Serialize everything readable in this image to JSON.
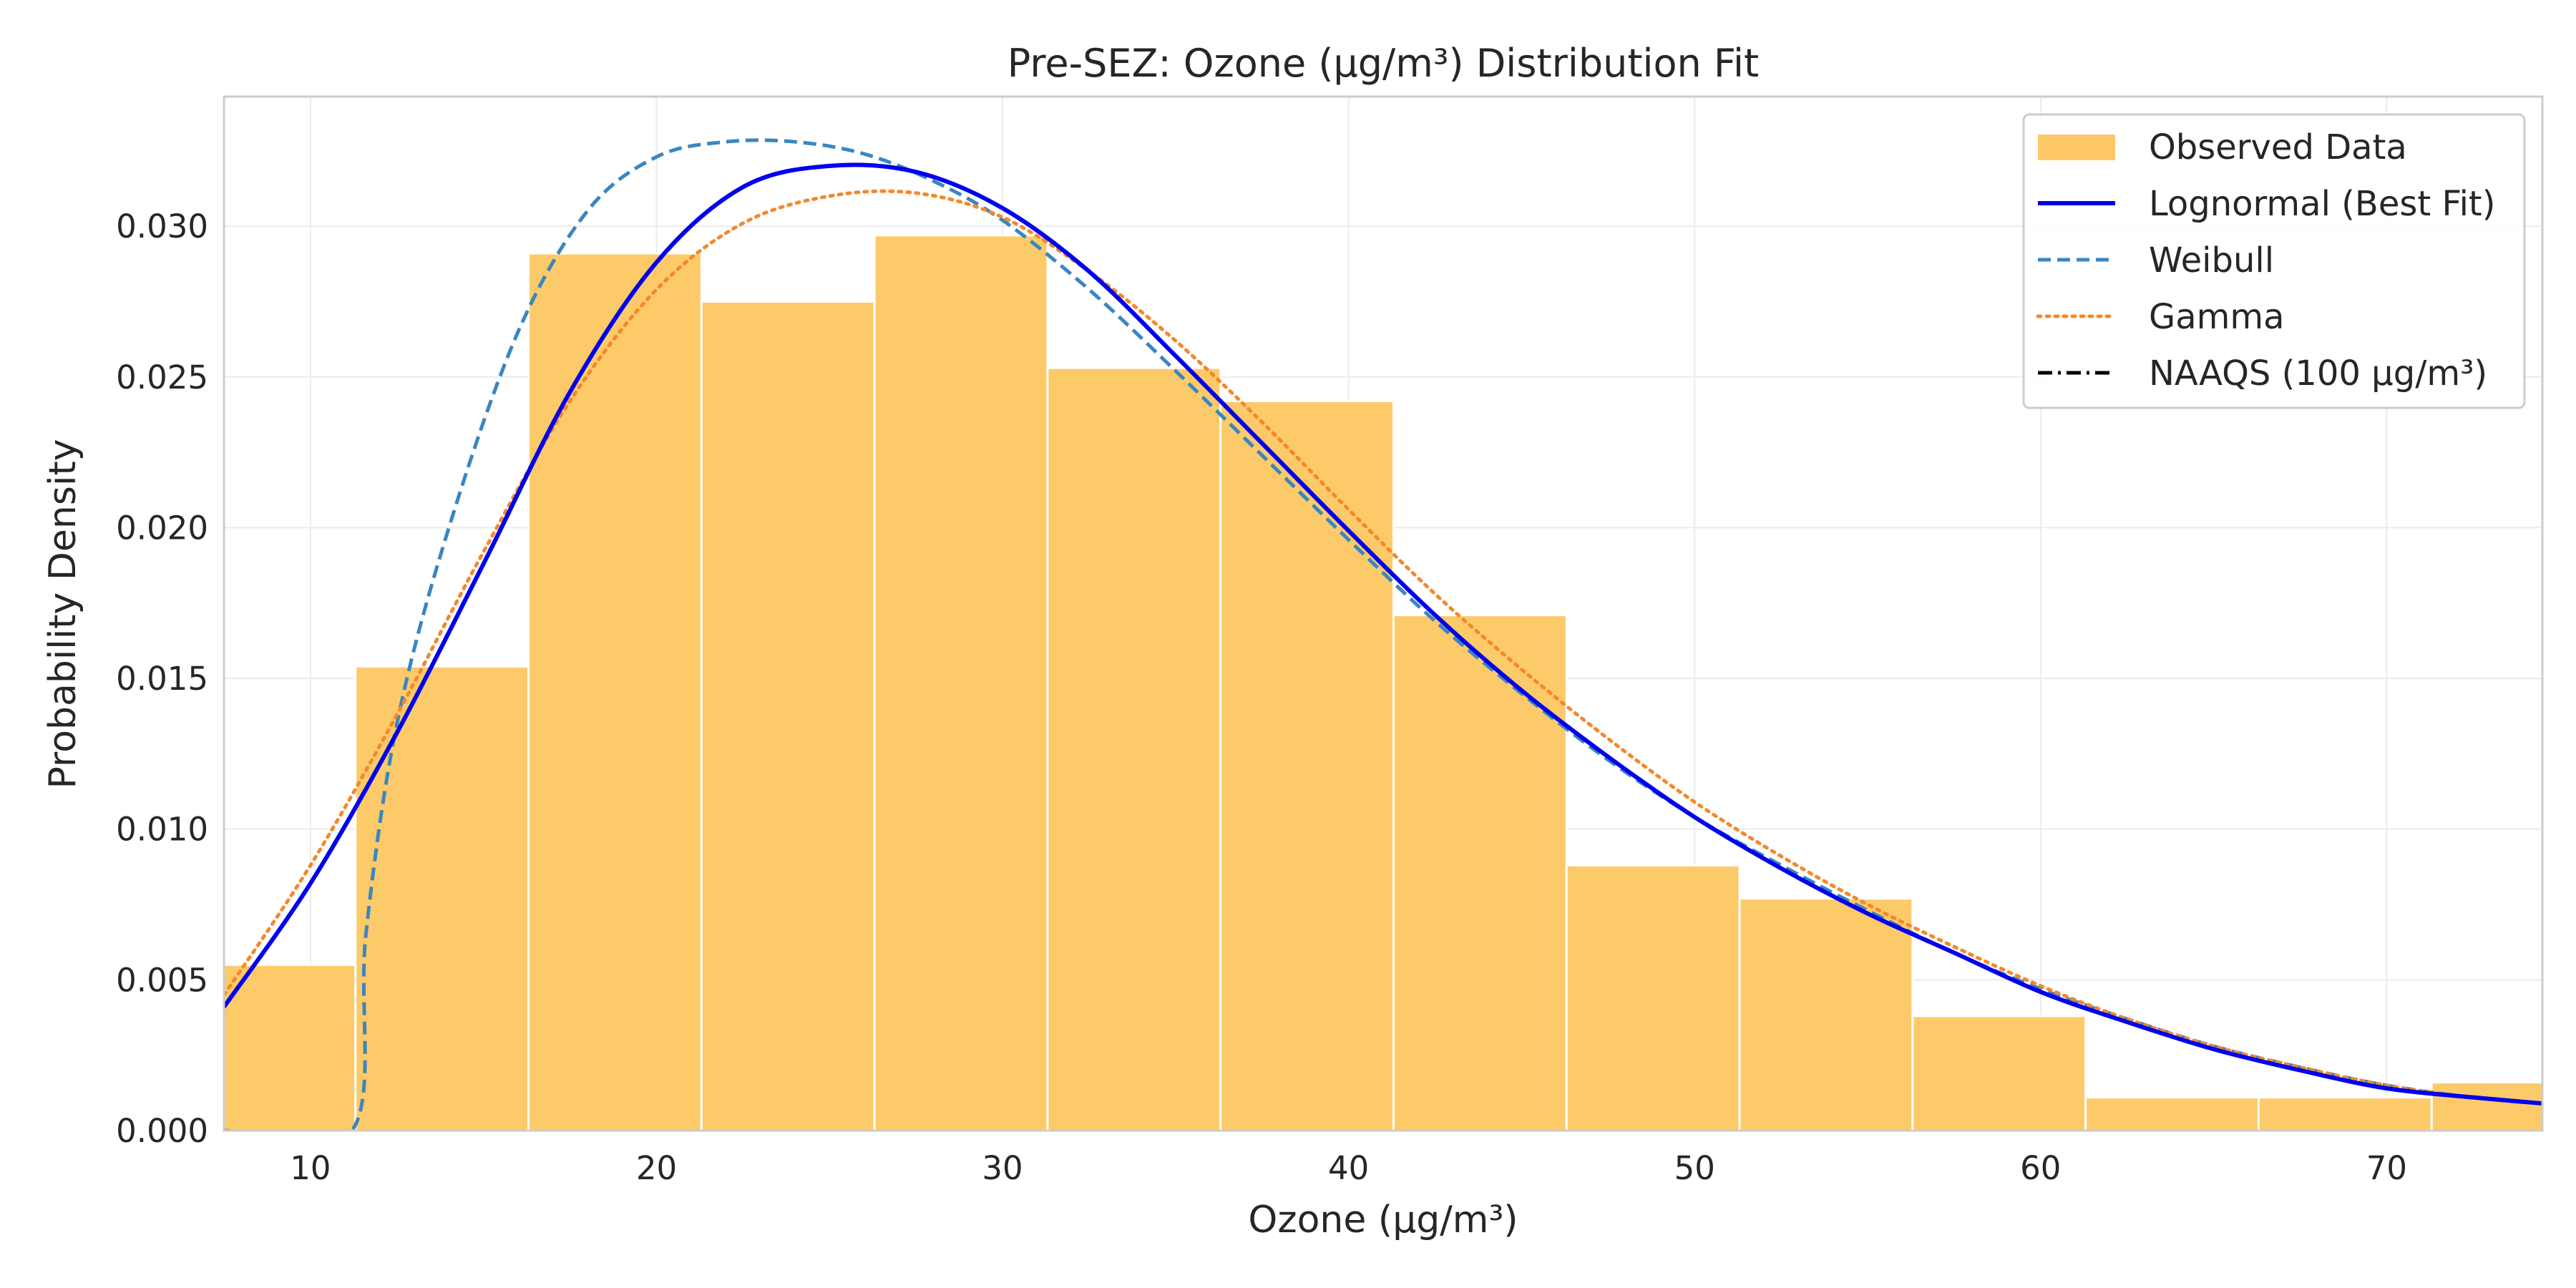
{
  "chart_data": {
    "type": "bar",
    "title": "Pre-SEZ: Ozone (µg/m³) Distribution Fit",
    "xlabel": "Ozone (µg/m³)",
    "ylabel": "Probability Density",
    "xlim": [
      7.5,
      74.5
    ],
    "ylim": [
      0,
      0.0343
    ],
    "grid": true,
    "legend_position": "top-right",
    "x_ticks": [
      10,
      20,
      30,
      40,
      50,
      60,
      70
    ],
    "y_ticks": [
      0,
      0.005,
      0.01,
      0.015,
      0.02,
      0.025,
      0.03
    ],
    "y_tick_labels": [
      "0.000",
      "0.005",
      "0.010",
      "0.015",
      "0.020",
      "0.025",
      "0.030"
    ],
    "histogram": {
      "name": "Observed Data",
      "color": "#fdc865",
      "bin_edges": [
        6.3,
        11.3,
        16.3,
        21.3,
        26.3,
        31.3,
        36.3,
        41.3,
        46.3,
        51.3,
        56.3,
        61.3,
        66.3,
        71.3,
        76.3
      ],
      "densities": [
        0.0055,
        0.0154,
        0.0291,
        0.0275,
        0.0297,
        0.0253,
        0.0242,
        0.0171,
        0.0088,
        0.0077,
        0.0038,
        0.0011,
        0.0011,
        0.0016
      ]
    },
    "series": [
      {
        "name": "Lognormal (Best Fit)",
        "color": "#0000ee",
        "style": "solid",
        "x": [
          7.5,
          10,
          12.5,
          15,
          17.5,
          20,
          22.5,
          25,
          27.5,
          30,
          32.5,
          35,
          37.5,
          40,
          42.5,
          45,
          47.5,
          50,
          52.5,
          55,
          57.5,
          60,
          62.5,
          65,
          67.5,
          70,
          72.5,
          74.5
        ],
        "y": [
          0.0041,
          0.0082,
          0.0132,
          0.0188,
          0.0245,
          0.0288,
          0.0313,
          0.032,
          0.0318,
          0.0306,
          0.0285,
          0.0257,
          0.0228,
          0.0199,
          0.0171,
          0.0146,
          0.0124,
          0.0104,
          0.0087,
          0.0072,
          0.0059,
          0.0046,
          0.0036,
          0.0027,
          0.002,
          0.0014,
          0.0011,
          0.0009
        ]
      },
      {
        "name": "Weibull",
        "color": "#3a86c0",
        "style": "dashed",
        "x": [
          7.5,
          11.2,
          11.6,
          12.5,
          14,
          16,
          18,
          20,
          22,
          24,
          26,
          28,
          30,
          32.5,
          35,
          37.5,
          40,
          42.5,
          45,
          47.5,
          50,
          52.5,
          55,
          57.5,
          60,
          62.5,
          65,
          67.5,
          70,
          72.5,
          74.5
        ],
        "y": [
          0,
          0,
          0.0065,
          0.0135,
          0.02,
          0.0265,
          0.0305,
          0.0323,
          0.0328,
          0.0328,
          0.0324,
          0.0315,
          0.0302,
          0.0279,
          0.0252,
          0.0224,
          0.0196,
          0.0169,
          0.0145,
          0.0123,
          0.0104,
          0.0088,
          0.0073,
          0.0059,
          0.0047,
          0.0037,
          0.0028,
          0.0021,
          0.0015,
          0.0011,
          0.0009
        ]
      },
      {
        "name": "Gamma",
        "color": "#f5882a",
        "style": "dotted",
        "x": [
          7.5,
          10,
          12.5,
          15,
          17.5,
          20,
          22.5,
          25,
          27.5,
          30,
          32.5,
          35,
          37.5,
          40,
          42.5,
          45,
          47.5,
          50,
          52.5,
          55,
          57.5,
          60,
          62.5,
          65,
          67.5,
          70,
          72.5,
          74.5
        ],
        "y": [
          0.0045,
          0.0088,
          0.0138,
          0.0192,
          0.0242,
          0.0279,
          0.0301,
          0.031,
          0.0311,
          0.0303,
          0.0285,
          0.0262,
          0.0235,
          0.0206,
          0.0178,
          0.0153,
          0.013,
          0.0109,
          0.0091,
          0.0075,
          0.0061,
          0.0048,
          0.0037,
          0.0028,
          0.0021,
          0.0015,
          0.0011,
          0.0009
        ]
      },
      {
        "name": "NAAQS (100 µg/m³)",
        "color": "#000000",
        "style": "dashdot",
        "x_value": 100
      }
    ]
  }
}
